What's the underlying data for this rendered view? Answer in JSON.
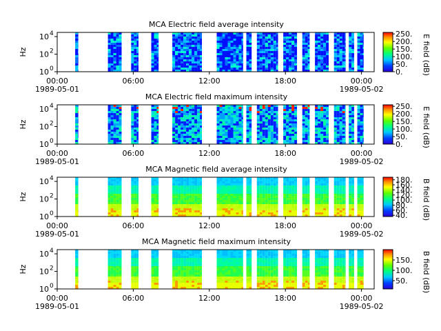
{
  "chart_data": [
    {
      "type": "heatmap",
      "title": "MCA  Electric field average intensity",
      "ylabel": "Hz",
      "yscale": "log",
      "ylim": [
        1,
        30000
      ],
      "yticks": [
        {
          "v": 1,
          "b": "10",
          "e": "0"
        },
        {
          "v": 100,
          "b": "10",
          "e": "2"
        },
        {
          "v": 10000,
          "b": "10",
          "e": "4"
        }
      ],
      "xlim": [
        "1989-05-01T00:00",
        "1989-05-02T01:00"
      ],
      "xticks": [
        {
          "t": "1989-05-01T00:00",
          "l1": "00:00",
          "l2": "1989-05-01"
        },
        {
          "t": "1989-05-01T06:00",
          "l1": "06:00",
          "l2": ""
        },
        {
          "t": "1989-05-01T12:00",
          "l1": "12:00",
          "l2": ""
        },
        {
          "t": "1989-05-01T18:00",
          "l1": "18:00",
          "l2": ""
        },
        {
          "t": "1989-05-02T00:00",
          "l1": "00:00",
          "l2": "1989-05-02"
        }
      ],
      "colorbar": {
        "label": "E field (dB)",
        "colormap": "rainbow",
        "range": [
          0,
          260
        ],
        "ticks": [
          "250.",
          "200.",
          "150.",
          "100.",
          "50.",
          "0."
        ]
      },
      "intervals": [
        [
          "01:25",
          "01:40"
        ],
        [
          "04:00",
          "05:05"
        ],
        [
          "05:50",
          "06:25"
        ],
        [
          "07:25",
          "08:00"
        ],
        [
          "09:05",
          "11:25"
        ],
        [
          "12:35",
          "14:40"
        ],
        [
          "14:55",
          "15:20"
        ],
        [
          "15:45",
          "17:25"
        ],
        [
          "17:50",
          "18:55"
        ],
        [
          "19:20",
          "19:55"
        ],
        [
          "20:20",
          "21:25"
        ],
        [
          "21:50",
          "22:45"
        ],
        [
          "23:00",
          "23:25"
        ],
        [
          "23:40",
          "24:10"
        ]
      ],
      "level": "low"
    },
    {
      "type": "heatmap",
      "title": "MCA  Electric field maximum intensity",
      "ylabel": "Hz",
      "yscale": "log",
      "ylim": [
        1,
        30000
      ],
      "yticks": [
        {
          "v": 1,
          "b": "10",
          "e": "0"
        },
        {
          "v": 100,
          "b": "10",
          "e": "2"
        },
        {
          "v": 10000,
          "b": "10",
          "e": "4"
        }
      ],
      "xlim": [
        "1989-05-01T00:00",
        "1989-05-02T01:00"
      ],
      "xticks": [
        {
          "t": "1989-05-01T00:00",
          "l1": "00:00",
          "l2": "1989-05-01"
        },
        {
          "t": "1989-05-01T06:00",
          "l1": "06:00",
          "l2": ""
        },
        {
          "t": "1989-05-01T12:00",
          "l1": "12:00",
          "l2": ""
        },
        {
          "t": "1989-05-01T18:00",
          "l1": "18:00",
          "l2": ""
        },
        {
          "t": "1989-05-02T00:00",
          "l1": "00:00",
          "l2": "1989-05-02"
        }
      ],
      "colorbar": {
        "label": "E field (dB)",
        "colormap": "rainbow",
        "range": [
          0,
          260
        ],
        "ticks": [
          "250.",
          "200.",
          "150.",
          "100.",
          "50.",
          "0."
        ]
      },
      "intervals": [
        [
          "01:25",
          "01:40"
        ],
        [
          "04:00",
          "05:05"
        ],
        [
          "05:50",
          "06:25"
        ],
        [
          "07:25",
          "08:00"
        ],
        [
          "09:05",
          "11:25"
        ],
        [
          "12:35",
          "14:40"
        ],
        [
          "14:55",
          "15:20"
        ],
        [
          "15:45",
          "17:25"
        ],
        [
          "17:50",
          "18:55"
        ],
        [
          "19:20",
          "19:55"
        ],
        [
          "20:20",
          "21:25"
        ],
        [
          "21:50",
          "22:45"
        ],
        [
          "23:00",
          "23:25"
        ],
        [
          "23:40",
          "24:10"
        ]
      ],
      "level": "mid"
    },
    {
      "type": "heatmap",
      "title": "MCA  Magnetic field average intensity",
      "ylabel": "Hz",
      "yscale": "log",
      "ylim": [
        1,
        30000
      ],
      "yticks": [
        {
          "v": 1,
          "b": "10",
          "e": "0"
        },
        {
          "v": 100,
          "b": "10",
          "e": "2"
        },
        {
          "v": 10000,
          "b": "10",
          "e": "4"
        }
      ],
      "xlim": [
        "1989-05-01T00:00",
        "1989-05-02T01:00"
      ],
      "xticks": [
        {
          "t": "1989-05-01T00:00",
          "l1": "00:00",
          "l2": "1989-05-01"
        },
        {
          "t": "1989-05-01T06:00",
          "l1": "06:00",
          "l2": ""
        },
        {
          "t": "1989-05-01T12:00",
          "l1": "12:00",
          "l2": ""
        },
        {
          "t": "1989-05-01T18:00",
          "l1": "18:00",
          "l2": ""
        },
        {
          "t": "1989-05-02T00:00",
          "l1": "00:00",
          "l2": "1989-05-02"
        }
      ],
      "colorbar": {
        "label": "B field (dB)",
        "colormap": "rainbow",
        "range": [
          35,
          190
        ],
        "ticks": [
          "180.",
          "160.",
          "140.",
          "120.",
          "100.",
          "80.",
          "60.",
          "40."
        ]
      },
      "intervals": [
        [
          "01:25",
          "01:40"
        ],
        [
          "04:00",
          "05:05"
        ],
        [
          "05:50",
          "06:25"
        ],
        [
          "07:25",
          "08:00"
        ],
        [
          "09:05",
          "11:25"
        ],
        [
          "12:35",
          "14:40"
        ],
        [
          "14:55",
          "15:20"
        ],
        [
          "15:45",
          "17:25"
        ],
        [
          "17:50",
          "18:55"
        ],
        [
          "19:20",
          "19:55"
        ],
        [
          "20:20",
          "21:25"
        ],
        [
          "21:50",
          "22:45"
        ],
        [
          "23:00",
          "23:25"
        ],
        [
          "23:40",
          "24:10"
        ]
      ],
      "level": "mag"
    },
    {
      "type": "heatmap",
      "title": "MCA  Magnetic field maximum intensity",
      "ylabel": "Hz",
      "yscale": "log",
      "ylim": [
        1,
        30000
      ],
      "yticks": [
        {
          "v": 1,
          "b": "10",
          "e": "0"
        },
        {
          "v": 100,
          "b": "10",
          "e": "2"
        },
        {
          "v": 10000,
          "b": "10",
          "e": "4"
        }
      ],
      "xlim": [
        "1989-05-01T00:00",
        "1989-05-02T01:00"
      ],
      "xticks": [
        {
          "t": "1989-05-01T00:00",
          "l1": "00:00",
          "l2": "1989-05-01"
        },
        {
          "t": "1989-05-01T06:00",
          "l1": "06:00",
          "l2": ""
        },
        {
          "t": "1989-05-01T12:00",
          "l1": "12:00",
          "l2": ""
        },
        {
          "t": "1989-05-01T18:00",
          "l1": "18:00",
          "l2": ""
        },
        {
          "t": "1989-05-02T00:00",
          "l1": "00:00",
          "l2": "1989-05-02"
        }
      ],
      "colorbar": {
        "label": "B field (dB)",
        "colormap": "rainbow",
        "range": [
          10,
          200
        ],
        "ticks": [
          "150.",
          "100.",
          "50."
        ]
      },
      "intervals": [
        [
          "01:25",
          "01:40"
        ],
        [
          "04:00",
          "05:05"
        ],
        [
          "05:50",
          "06:25"
        ],
        [
          "07:25",
          "08:00"
        ],
        [
          "09:05",
          "11:25"
        ],
        [
          "12:35",
          "14:40"
        ],
        [
          "14:55",
          "15:20"
        ],
        [
          "15:45",
          "17:25"
        ],
        [
          "17:50",
          "18:55"
        ],
        [
          "19:20",
          "19:55"
        ],
        [
          "20:20",
          "21:25"
        ],
        [
          "21:50",
          "22:45"
        ],
        [
          "23:00",
          "23:25"
        ],
        [
          "23:40",
          "24:10"
        ]
      ],
      "level": "mag"
    }
  ]
}
